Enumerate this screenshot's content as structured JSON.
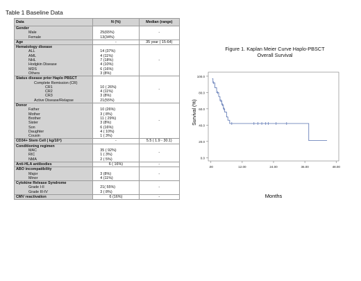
{
  "table": {
    "title": "Table 1 Baseline Data",
    "headers": [
      "Data",
      "N (%)",
      "Median (range)"
    ],
    "sections": [
      {
        "title": "Gender",
        "labels": [
          "Male",
          "Female"
        ],
        "values": [
          "25(65%)",
          "13(34%)"
        ],
        "median": "-"
      },
      {
        "title": "Age",
        "labels": [],
        "values": [
          "-"
        ],
        "median": "35 year ( 15-64)"
      },
      {
        "title": "Hematology disease",
        "labels": [
          "ALL",
          "AML",
          "NHL",
          "Hodgkin Disease",
          "MDS",
          "Others"
        ],
        "values": [
          "14 (37%)",
          "4 (11%)",
          "7 (18%)",
          "4 (10%)",
          "6 (16%)",
          "3 (8%)"
        ],
        "median": "-"
      },
      {
        "title": "Status disease prior Haplo PBSCT",
        "labels": [
          "Complete Remission (CR)",
          "CR1",
          "CR2",
          "CR3",
          "Active Disease/Relapse"
        ],
        "values": [
          "",
          "10 ( 26%)",
          "4 (11%)",
          "3 (8%)",
          "21(55%)"
        ],
        "median": "-"
      },
      {
        "title": "Donor",
        "labels": [
          "Father",
          "Mother",
          "Brother",
          "Sister",
          "Son",
          "Daughter",
          "Cousin"
        ],
        "values": [
          "10 (26%)",
          "3 ( 8%)",
          "11 ( 29%)",
          "3 (8%)",
          "6 (16%)",
          "4 ( 10%)",
          "1 ( 3%)"
        ],
        "median": "-"
      },
      {
        "title": "CD34+ Stem Cell ( kg/10⁶)",
        "labels": [],
        "values": [
          "-"
        ],
        "median": "5.5 ( 1.9 - 30.1)"
      },
      {
        "title": "Conditioning regimen",
        "labels": [
          "MAC",
          "RIC",
          "NMA"
        ],
        "values": [
          "35 ( 92%)",
          "1 ( 3%)",
          "2 ( 5%)"
        ],
        "median": "-"
      },
      {
        "title": "Anti-HLA antibodies",
        "labels": [],
        "values": [
          "6 ( 16%)"
        ],
        "median": "-"
      },
      {
        "title": "ABO incompatibility",
        "labels": [
          "Major",
          "Minor"
        ],
        "values": [
          "3 (8%)",
          "4 (11%)"
        ],
        "median": "-"
      },
      {
        "title": "Cytokine Release Syndrome",
        "labels": [
          "Grade I-II",
          "Grade III-IV"
        ],
        "values": [
          "21( 55%)",
          "3 ( 8%)"
        ],
        "median": "-"
      },
      {
        "title": "CMV reactivation",
        "labels": [],
        "values": [
          "6 (16%)"
        ],
        "median": "-"
      }
    ]
  },
  "figure": {
    "title_line1": "Figure 1. Kaplan Meier Curve Haplo-PBSCT",
    "title_line2": "Overall Survival"
  },
  "chart_data": {
    "type": "line",
    "title": "Figure 1. Kaplan Meier Curve Haplo-PBSCT Overall Survival",
    "xlabel": "Months",
    "ylabel": "Survival (%)",
    "xlim": [
      -1,
      49
    ],
    "ylim": [
      -4,
      105
    ],
    "x_ticks": [
      0,
      12,
      24,
      36,
      48
    ],
    "x_tick_labels": [
      ".00",
      "12.00",
      "24.00",
      "36.00",
      "48.00"
    ],
    "y_ticks": [
      0,
      20,
      40,
      60,
      80,
      100
    ],
    "y_tick_labels": [
      "0.0",
      "20.0",
      "40.0",
      "60.0",
      "80.0",
      "100.0"
    ],
    "series": [
      {
        "steps": [
          [
            0.5,
            97
          ],
          [
            0.8,
            92
          ],
          [
            1.5,
            86
          ],
          [
            2.2,
            80
          ],
          [
            3.0,
            75
          ],
          [
            3.5,
            70
          ],
          [
            4.2,
            65
          ],
          [
            4.8,
            60
          ],
          [
            5.3,
            56
          ],
          [
            6.0,
            50
          ],
          [
            6.5,
            46
          ],
          [
            7.2,
            42
          ],
          [
            37.5,
            21
          ],
          [
            44.5,
            21
          ]
        ],
        "censored": [
          [
            1.0,
            92
          ],
          [
            2.6,
            80
          ],
          [
            3.8,
            70
          ],
          [
            4.5,
            65
          ],
          [
            5.0,
            60
          ],
          [
            8.0,
            42
          ],
          [
            16.5,
            42
          ],
          [
            18.0,
            42
          ],
          [
            19.5,
            42
          ],
          [
            21.0,
            42
          ],
          [
            22.0,
            42
          ],
          [
            25.0,
            42
          ],
          [
            29.0,
            42
          ]
        ]
      }
    ],
    "grid": false,
    "color": "#5570b0"
  }
}
